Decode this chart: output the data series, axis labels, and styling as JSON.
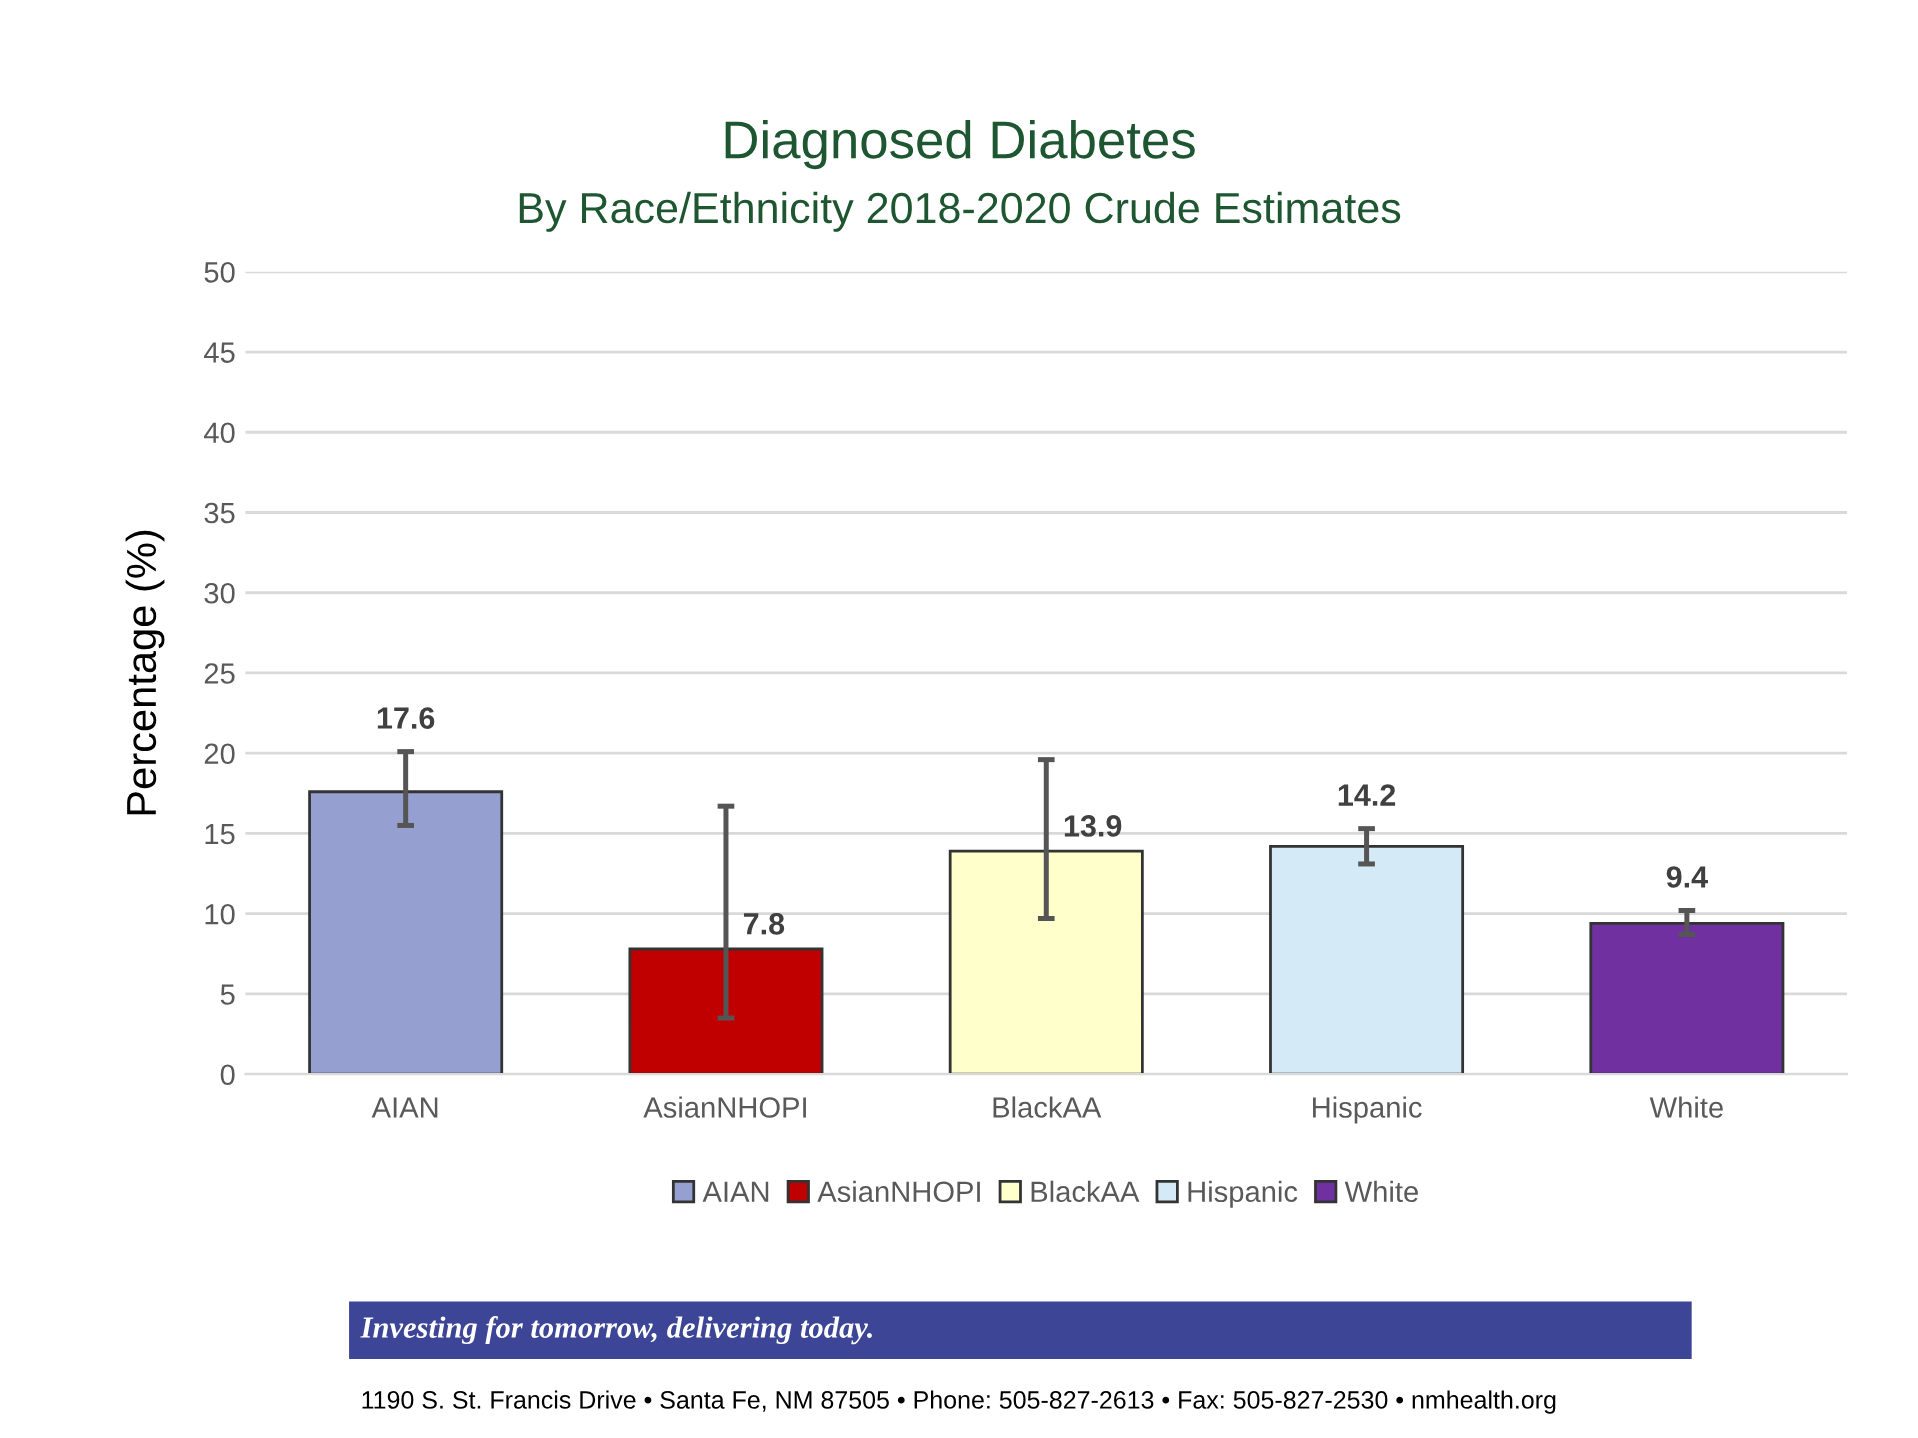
{
  "chart_data": {
    "type": "bar",
    "title": "Diagnosed Diabetes",
    "subtitle": "By Race/Ethnicity 2018-2020 Crude Estimates",
    "ylabel": "Percentage (%)",
    "categories": [
      "AIAN",
      "AsianNHOPI",
      "BlackAA",
      "Hispanic",
      "White"
    ],
    "series": [
      {
        "name": "AIAN",
        "color": "#96a0d0",
        "values": [
          17.6,
          null,
          null,
          null,
          null
        ],
        "errors": [
          [
            15.5,
            20.1
          ],
          null,
          null,
          null,
          null
        ]
      },
      {
        "name": "AsianNHOPI",
        "color": "#c00000",
        "values": [
          null,
          7.8,
          null,
          null,
          null
        ],
        "errors": [
          null,
          [
            3.5,
            16.7
          ],
          null,
          null,
          null
        ]
      },
      {
        "name": "BlackAA",
        "color": "#ffffcc",
        "values": [
          null,
          null,
          13.9,
          null,
          null
        ],
        "errors": [
          null,
          null,
          [
            9.7,
            19.6
          ],
          null,
          null
        ]
      },
      {
        "name": "Hispanic",
        "color": "#d4eaf7",
        "values": [
          null,
          null,
          null,
          14.2,
          null
        ],
        "errors": [
          null,
          null,
          null,
          [
            13.1,
            15.3
          ],
          null
        ]
      },
      {
        "name": "White",
        "color": "#7030a0",
        "values": [
          null,
          null,
          null,
          null,
          9.4
        ],
        "errors": [
          null,
          null,
          null,
          null,
          [
            8.7,
            10.2
          ]
        ]
      }
    ],
    "ylim": [
      0,
      50
    ],
    "yticks": [
      0,
      5,
      10,
      15,
      20,
      25,
      30,
      35,
      40,
      45,
      50
    ],
    "grid": "y",
    "legend": "bottom",
    "data_labels": true,
    "annotations": [
      "Investing for tomorrow, delivering today.",
      "1190 S. St. Francis Drive • Santa Fe, NM 87505 • Phone: 505-827-2613 • Fax: 505-827-2530 • nmhealth.org"
    ]
  }
}
